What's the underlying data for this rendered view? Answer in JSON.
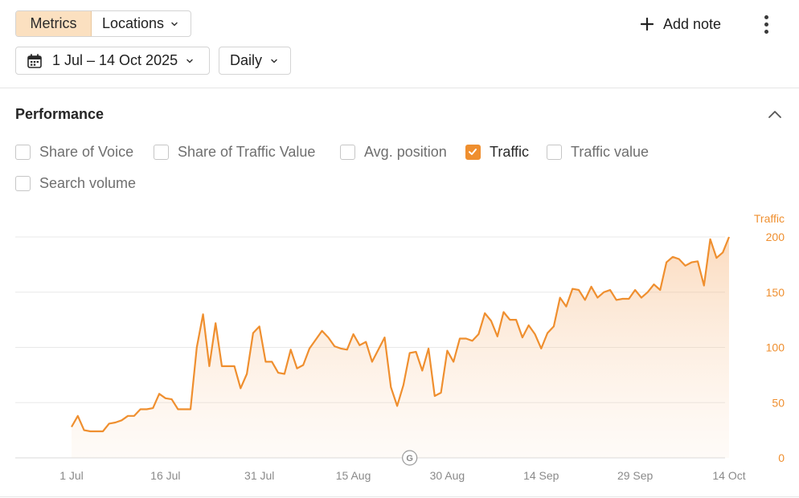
{
  "tabs": {
    "metrics_label": "Metrics",
    "locations_label": "Locations"
  },
  "toolbar": {
    "add_note_label": "Add note",
    "date_range": "1 Jul – 14 Oct 2025",
    "granularity": "Daily"
  },
  "section": {
    "title": "Performance"
  },
  "checkboxes": [
    {
      "label": "Share of Voice",
      "checked": false
    },
    {
      "label": "Share of Traffic Value",
      "checked": false
    },
    {
      "label": "Avg. position",
      "checked": false
    },
    {
      "label": "Traffic",
      "checked": true
    },
    {
      "label": "Traffic value",
      "checked": false
    },
    {
      "label": "Search volume",
      "checked": false
    }
  ],
  "icons": {
    "calendar": "calendar-icon",
    "plus": "plus-icon",
    "more": "more-vertical-icon",
    "collapse": "chevron-up-icon",
    "chevron": "chevron-down-icon",
    "google_marker": "google-update-icon"
  },
  "colors": {
    "accent": "#ef8f2f",
    "active_tab_bg": "#fbe0c0",
    "grid": "#e6e6e6",
    "axis_text": "#8a8a8a"
  },
  "chart_data": {
    "type": "area",
    "series": [
      {
        "name": "Traffic",
        "color": "#ef8f2f",
        "x": [
          "2025-07-01",
          "2025-07-02",
          "2025-07-03",
          "2025-07-04",
          "2025-07-05",
          "2025-07-06",
          "2025-07-07",
          "2025-07-08",
          "2025-07-09",
          "2025-07-10",
          "2025-07-11",
          "2025-07-12",
          "2025-07-13",
          "2025-07-14",
          "2025-07-15",
          "2025-07-16",
          "2025-07-17",
          "2025-07-18",
          "2025-07-19",
          "2025-07-20",
          "2025-07-21",
          "2025-07-22",
          "2025-07-23",
          "2025-07-24",
          "2025-07-25",
          "2025-07-26",
          "2025-07-27",
          "2025-07-28",
          "2025-07-29",
          "2025-07-30",
          "2025-07-31",
          "2025-08-01",
          "2025-08-02",
          "2025-08-03",
          "2025-08-04",
          "2025-08-05",
          "2025-08-06",
          "2025-08-07",
          "2025-08-08",
          "2025-08-09",
          "2025-08-10",
          "2025-08-11",
          "2025-08-12",
          "2025-08-13",
          "2025-08-14",
          "2025-08-15",
          "2025-08-16",
          "2025-08-17",
          "2025-08-18",
          "2025-08-19",
          "2025-08-20",
          "2025-08-21",
          "2025-08-22",
          "2025-08-23",
          "2025-08-24",
          "2025-08-25",
          "2025-08-26",
          "2025-08-27",
          "2025-08-28",
          "2025-08-29",
          "2025-08-30",
          "2025-08-31",
          "2025-09-01",
          "2025-09-02",
          "2025-09-03",
          "2025-09-04",
          "2025-09-05",
          "2025-09-06",
          "2025-09-07",
          "2025-09-08",
          "2025-09-09",
          "2025-09-10",
          "2025-09-11",
          "2025-09-12",
          "2025-09-13",
          "2025-09-14",
          "2025-09-15",
          "2025-09-16",
          "2025-09-17",
          "2025-09-18",
          "2025-09-19",
          "2025-09-20",
          "2025-09-21",
          "2025-09-22",
          "2025-09-23",
          "2025-09-24",
          "2025-09-25",
          "2025-09-26",
          "2025-09-27",
          "2025-09-28",
          "2025-09-29",
          "2025-09-30",
          "2025-10-01",
          "2025-10-02",
          "2025-10-03",
          "2025-10-04",
          "2025-10-05",
          "2025-10-06",
          "2025-10-07",
          "2025-10-08",
          "2025-10-09",
          "2025-10-10",
          "2025-10-11",
          "2025-10-12",
          "2025-10-13",
          "2025-10-14"
        ],
        "values": [
          28,
          38,
          25,
          24,
          24,
          24,
          31,
          32,
          34,
          38,
          38,
          44,
          44,
          45,
          58,
          54,
          53,
          44,
          44,
          44,
          100,
          130,
          83,
          122,
          83,
          83,
          83,
          63,
          76,
          113,
          119,
          87,
          87,
          77,
          76,
          98,
          81,
          84,
          99,
          107,
          115,
          109,
          101,
          99,
          98,
          112,
          102,
          105,
          87,
          98,
          109,
          64,
          47,
          66,
          95,
          96,
          79,
          99,
          56,
          59,
          97,
          87,
          108,
          108,
          106,
          112,
          131,
          124,
          110,
          132,
          125,
          125,
          109,
          120,
          112,
          99,
          113,
          119,
          145,
          137,
          153,
          152,
          143,
          155,
          145,
          150,
          152,
          143,
          144,
          144,
          152,
          145,
          150,
          157,
          152,
          177,
          182,
          180,
          174,
          177,
          178,
          156,
          198,
          181,
          186,
          200
        ],
        "values_note": ""
      }
    ],
    "x_tick_labels": [
      "1 Jul",
      "16 Jul",
      "31 Jul",
      "15 Aug",
      "30 Aug",
      "14 Sep",
      "29 Sep",
      "14 Oct"
    ],
    "y_tick_labels": [
      "0",
      "50",
      "100",
      "150",
      "200"
    ],
    "y_axis_title": "Traffic",
    "ylim": [
      0,
      200
    ],
    "grid": true,
    "annotations": [
      {
        "label": "G",
        "date": "2025-08-24"
      }
    ]
  }
}
